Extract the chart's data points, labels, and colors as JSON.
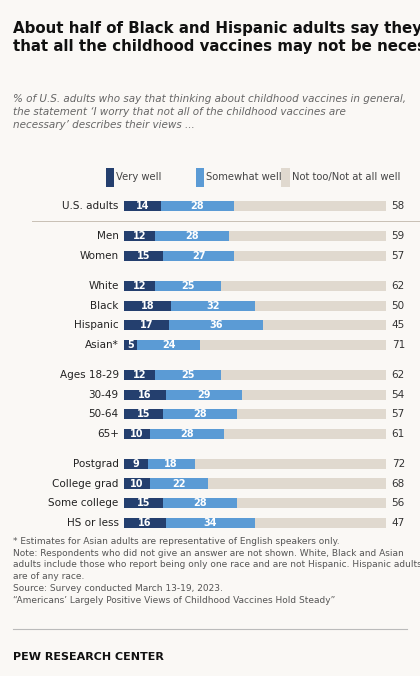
{
  "title": "About half of Black and Hispanic adults say they worry\nthat all the childhood vaccines may not be necessary",
  "subtitle": "% of U.S. adults who say that thinking about childhood vaccines in general,\nthe statement ‘I worry that not all of the childhood vaccines are\nnecessary’ describes their views ...",
  "legend_labels": [
    "Very well",
    "Somewhat well",
    "Not too/Not at all well"
  ],
  "colors": [
    "#243f6e",
    "#5b9bd5",
    "#e0d9cf"
  ],
  "categories": [
    "U.S. adults",
    "Men",
    "Women",
    "White",
    "Black",
    "Hispanic",
    "Asian*",
    "Ages 18-29",
    "30-49",
    "50-64",
    "65+",
    "Postgrad",
    "College grad",
    "Some college",
    "HS or less"
  ],
  "group_breaks": [
    1,
    3,
    7,
    11
  ],
  "very_well": [
    14,
    12,
    15,
    12,
    18,
    17,
    5,
    12,
    16,
    15,
    10,
    9,
    10,
    15,
    16
  ],
  "somewhat_well": [
    28,
    28,
    27,
    25,
    32,
    36,
    24,
    25,
    29,
    28,
    28,
    18,
    22,
    28,
    34
  ],
  "not_at_all": [
    58,
    59,
    57,
    62,
    50,
    45,
    71,
    62,
    54,
    57,
    61,
    72,
    68,
    56,
    47
  ],
  "footnote_star": "* Estimates for Asian adults are representative of English speakers only.",
  "footnote_note": "Note: Respondents who did not give an answer are not shown. White, Black and Asian\nadults include those who report being only one race and are not Hispanic. Hispanic adults\nare of any race.",
  "footnote_source": "Source: Survey conducted March 13-19, 2023.",
  "footnote_quote": "“Americans’ Largely Positive Views of Childhood Vaccines Hold Steady”",
  "source_label": "PEW RESEARCH CENTER",
  "background_color": "#faf8f5"
}
